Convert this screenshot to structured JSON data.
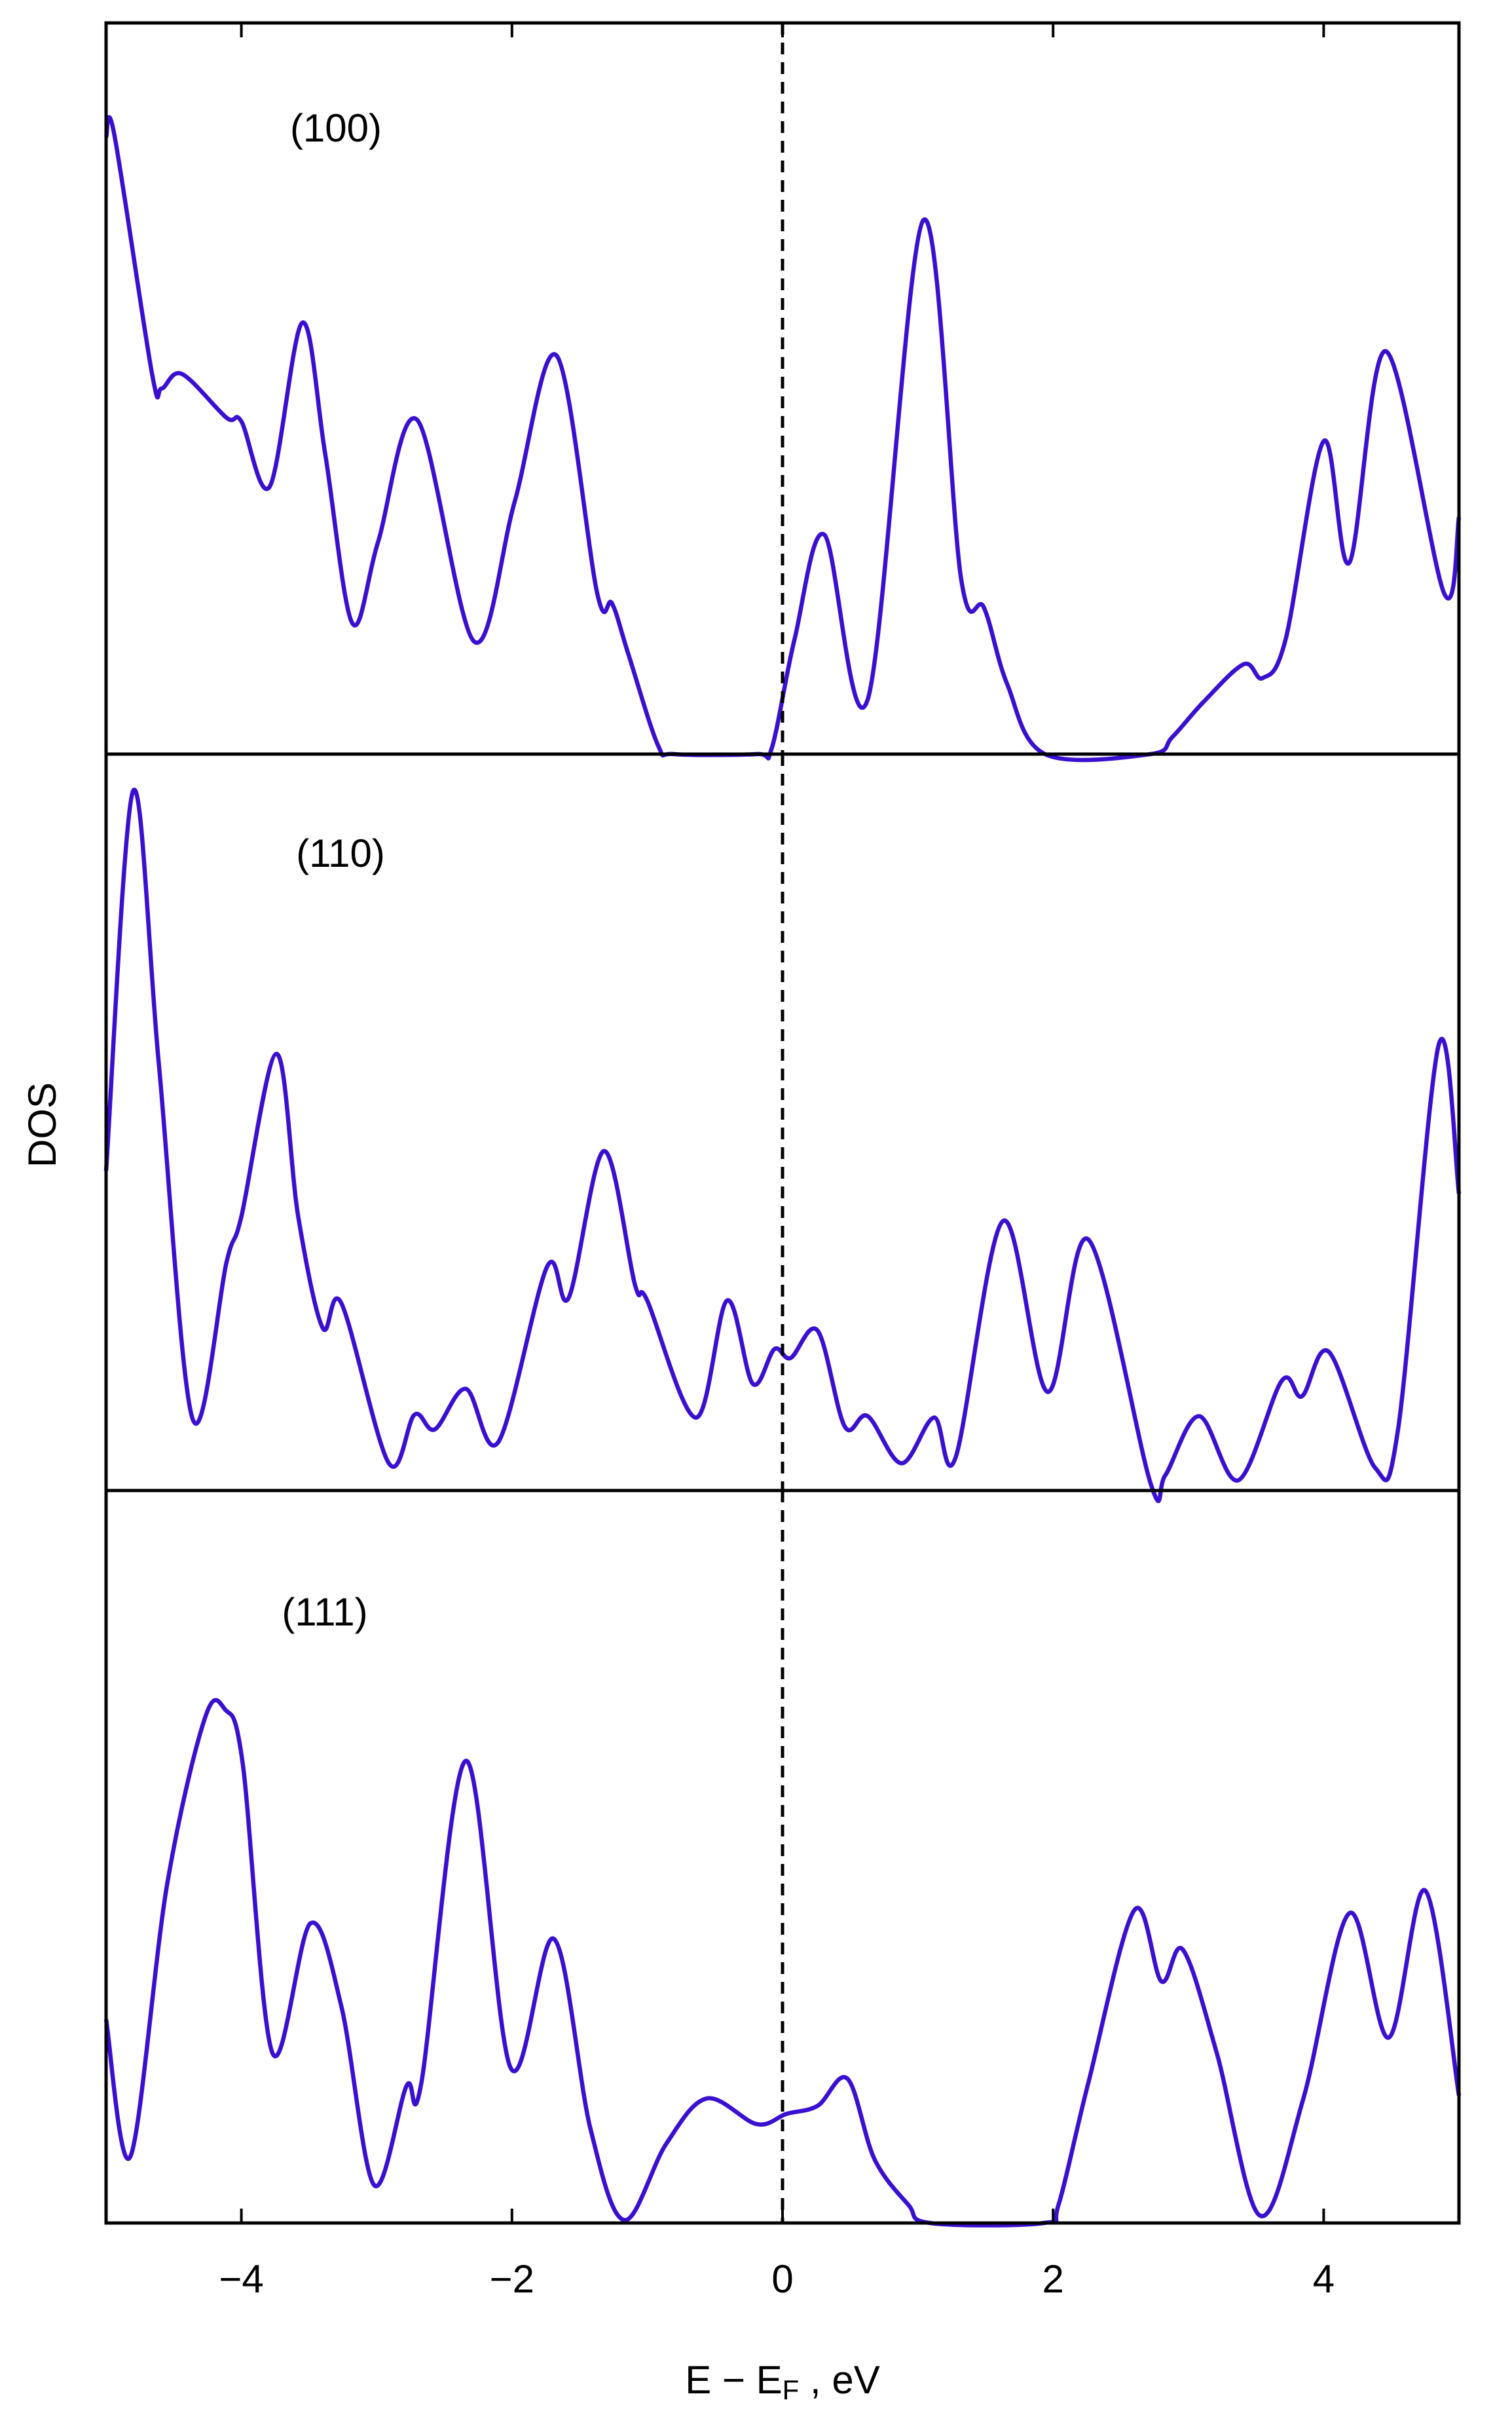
{
  "chart_data": [
    {
      "type": "line",
      "title": "(100)",
      "color": "#3a10d0",
      "xlim": [
        -5,
        5
      ],
      "ylim": [
        0,
        1
      ],
      "ref_line_x": 0,
      "x": [
        -5,
        -4.94,
        -4.66,
        -4.59,
        -4.44,
        -4.11,
        -4.0,
        -3.79,
        -3.55,
        -3.38,
        -3.18,
        -2.99,
        -2.7,
        -2.28,
        -1.98,
        -1.67,
        -1.37,
        -1.26,
        -1.14,
        -0.92,
        -0.8,
        -0.19,
        -0.08,
        0.09,
        0.31,
        0.63,
        1.04,
        1.32,
        1.49,
        1.66,
        1.94,
        2.72,
        2.88,
        3.11,
        3.41,
        3.55,
        3.72,
        4.0,
        4.19,
        4.46,
        4.89,
        5.0
      ],
      "values": [
        0.844,
        0.848,
        0.52,
        0.5,
        0.52,
        0.46,
        0.455,
        0.366,
        0.59,
        0.41,
        0.179,
        0.29,
        0.457,
        0.154,
        0.345,
        0.545,
        0.22,
        0.206,
        0.137,
        0.012,
        0,
        0,
        0.008,
        0.158,
        0.3,
        0.075,
        0.73,
        0.24,
        0.2,
        0.096,
        0,
        0,
        0.023,
        0.071,
        0.123,
        0.104,
        0.158,
        0.428,
        0.262,
        0.551,
        0.22,
        0.324
      ]
    },
    {
      "type": "line",
      "title": "(110)",
      "color": "#3a10d0",
      "xlim": [
        -5,
        5
      ],
      "ylim": [
        0,
        1
      ],
      "ref_line_x": 0,
      "ylabel": "DOS",
      "x": [
        -5,
        -4.8,
        -4.61,
        -4.36,
        -4.11,
        -4.0,
        -3.74,
        -3.58,
        -3.4,
        -3.26,
        -2.91,
        -2.72,
        -2.57,
        -2.34,
        -2.1,
        -1.74,
        -1.58,
        -1.32,
        -1.09,
        -1.0,
        -0.64,
        -0.41,
        -0.22,
        -0.06,
        0.06,
        0.26,
        0.46,
        0.63,
        0.88,
        1.12,
        1.28,
        1.63,
        1.96,
        2.26,
        2.72,
        2.83,
        3.08,
        3.37,
        3.69,
        3.84,
        4.04,
        4.38,
        4.55,
        4.85,
        5.0
      ],
      "values": [
        0.434,
        0.95,
        0.579,
        0.097,
        0.31,
        0.372,
        0.593,
        0.372,
        0.221,
        0.254,
        0.037,
        0.103,
        0.083,
        0.138,
        0.066,
        0.304,
        0.262,
        0.461,
        0.279,
        0.258,
        0.099,
        0.258,
        0.145,
        0.192,
        0.18,
        0.217,
        0.087,
        0.101,
        0.037,
        0.099,
        0.045,
        0.366,
        0.134,
        0.341,
        0.01,
        0.021,
        0.101,
        0.014,
        0.149,
        0.128,
        0.188,
        0.031,
        0.083,
        0.605,
        0.403
      ]
    },
    {
      "type": "line",
      "title": "(111)",
      "color": "#3a10d0",
      "xlim": [
        -5,
        5
      ],
      "ylim": [
        0,
        1
      ],
      "ref_line_x": 0,
      "xticks": [
        {
          "value": -4,
          "label": "−4"
        },
        {
          "value": -2,
          "label": "−2"
        },
        0,
        2,
        4
      ],
      "xlabel": {
        "main": "E − E",
        "sub": "F",
        "tail": " , eV"
      },
      "x": [
        -5,
        -4.82,
        -4.55,
        -4.27,
        -4.12,
        -3.99,
        -3.77,
        -3.49,
        -3.26,
        -3.02,
        -2.78,
        -2.67,
        -2.34,
        -2.01,
        -1.69,
        -1.42,
        -1.17,
        -0.86,
        -0.56,
        -0.19,
        0.03,
        0.26,
        0.48,
        0.68,
        0.93,
        1.09,
        1.93,
        2.04,
        2.26,
        2.6,
        2.8,
        2.96,
        3.21,
        3.53,
        3.85,
        4.19,
        4.48,
        4.75,
        5.0
      ],
      "values": [
        0.278,
        0.091,
        0.461,
        0.689,
        0.701,
        0.627,
        0.232,
        0.409,
        0.295,
        0.052,
        0.187,
        0.191,
        0.631,
        0.212,
        0.388,
        0.129,
        0.004,
        0.108,
        0.17,
        0.135,
        0.149,
        0.16,
        0.197,
        0.087,
        0.025,
        0,
        0,
        0.025,
        0.191,
        0.427,
        0.33,
        0.373,
        0.232,
        0.01,
        0.17,
        0.423,
        0.253,
        0.454,
        0.174
      ]
    }
  ]
}
